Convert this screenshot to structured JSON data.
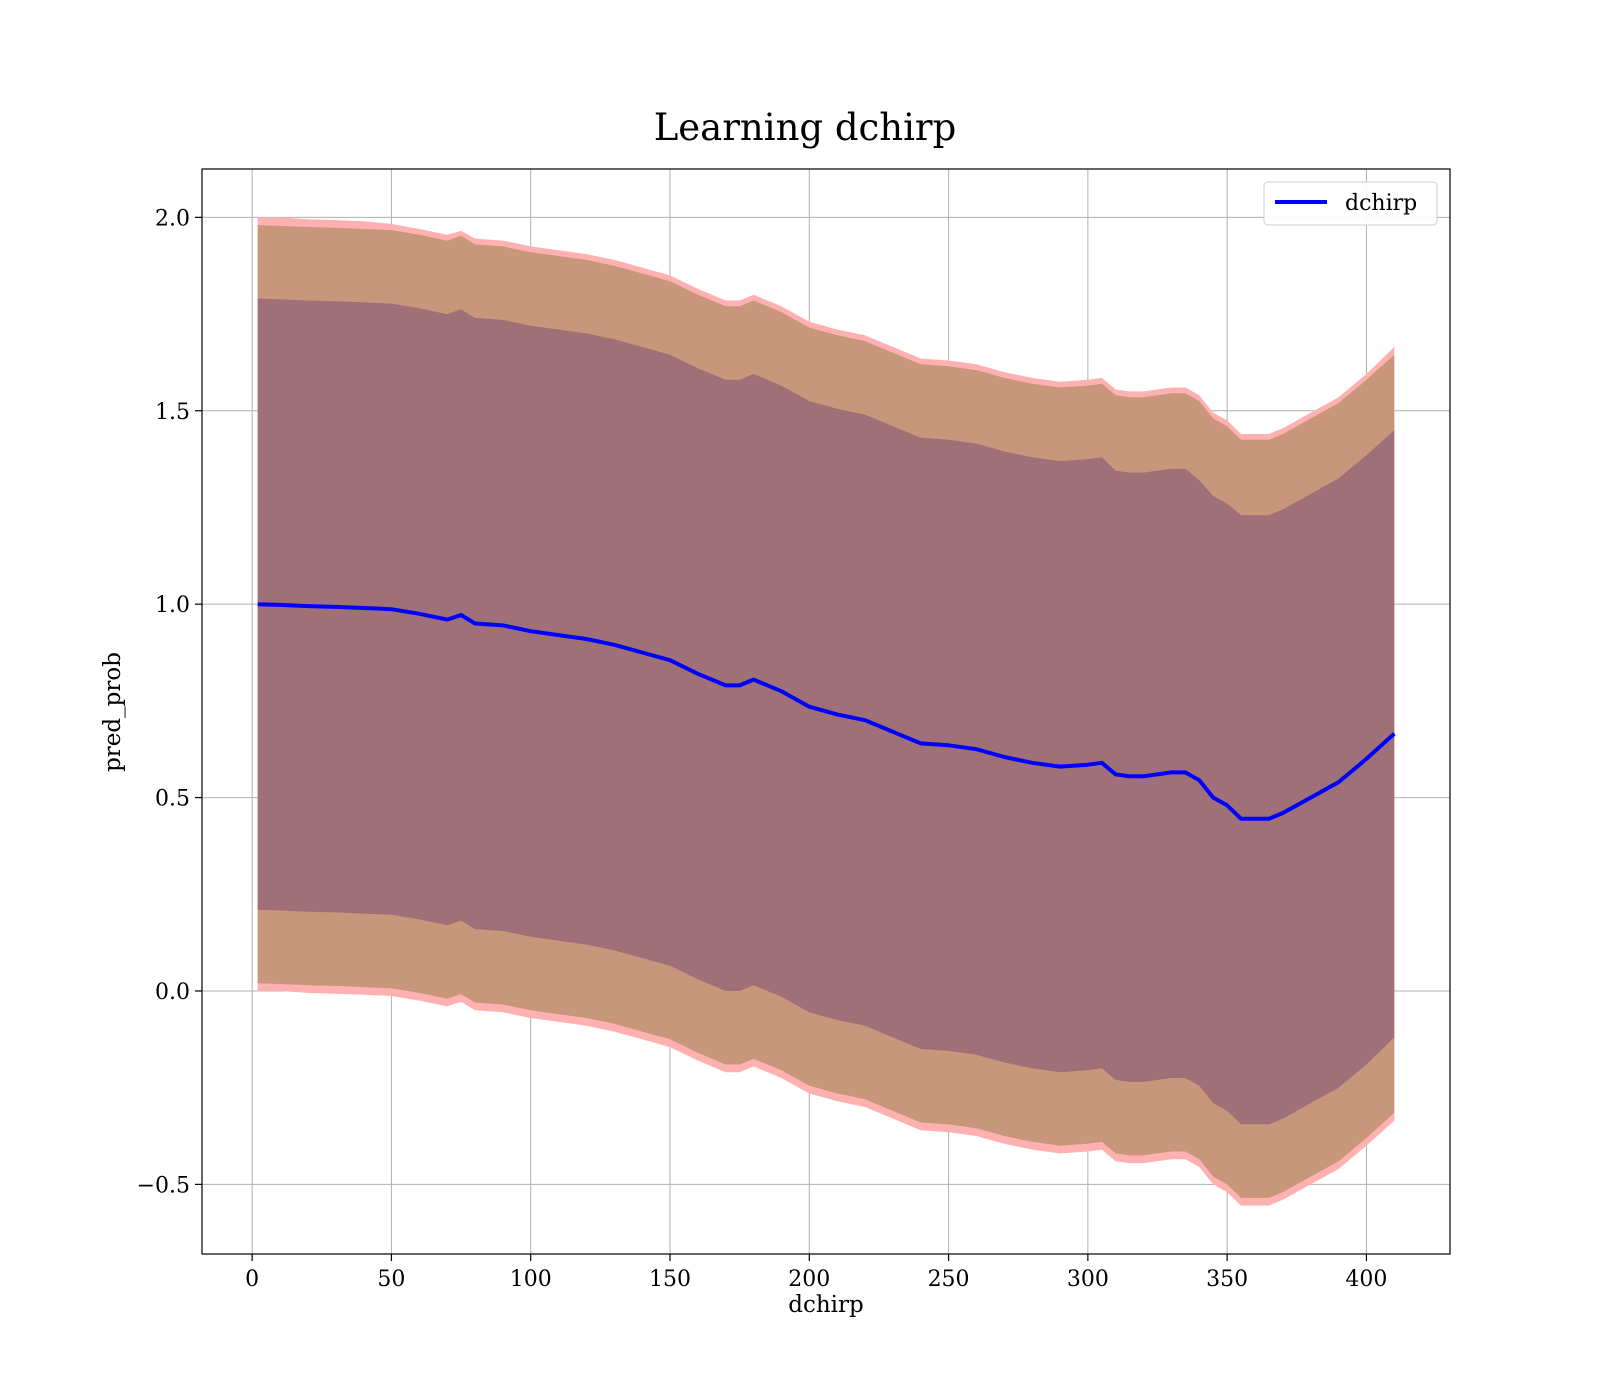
{
  "chart_data": {
    "type": "line",
    "title": "Learning dchirp",
    "xlabel": "dchirp",
    "ylabel": "pred_prob",
    "xlim": [
      -18,
      430
    ],
    "ylim": [
      -0.68,
      2.125
    ],
    "xticks": [
      0,
      50,
      100,
      150,
      200,
      250,
      300,
      350,
      400
    ],
    "yticks": [
      -0.5,
      0.0,
      0.5,
      1.0,
      1.5,
      2.0
    ],
    "xtick_labels": [
      "0",
      "50",
      "100",
      "150",
      "200",
      "250",
      "300",
      "350",
      "400"
    ],
    "ytick_labels": [
      "−0.5",
      "0.0",
      "0.5",
      "1.0",
      "1.5",
      "2.0"
    ],
    "grid": true,
    "legend_position": "top-right",
    "colors": {
      "line": "#0000ff",
      "band_outer": "#ffb0b0",
      "band_middle": "#c8967a",
      "band_inner": "#a07078",
      "grid": "#b0b0b0"
    },
    "series": [
      {
        "name": "dchirp",
        "x": [
          2,
          10,
          20,
          30,
          40,
          50,
          60,
          70,
          75,
          80,
          90,
          100,
          110,
          120,
          130,
          140,
          150,
          160,
          170,
          175,
          180,
          190,
          200,
          210,
          220,
          230,
          240,
          250,
          260,
          270,
          280,
          290,
          300,
          305,
          310,
          315,
          320,
          330,
          335,
          340,
          345,
          350,
          355,
          360,
          365,
          370,
          380,
          390,
          400,
          410
        ],
        "y": [
          1.0,
          0.998,
          0.995,
          0.993,
          0.99,
          0.987,
          0.975,
          0.96,
          0.972,
          0.95,
          0.945,
          0.93,
          0.92,
          0.91,
          0.895,
          0.875,
          0.855,
          0.82,
          0.79,
          0.79,
          0.805,
          0.775,
          0.735,
          0.715,
          0.7,
          0.67,
          0.64,
          0.635,
          0.625,
          0.605,
          0.59,
          0.58,
          0.585,
          0.59,
          0.56,
          0.555,
          0.555,
          0.565,
          0.565,
          0.545,
          0.5,
          0.48,
          0.445,
          0.445,
          0.445,
          0.46,
          0.5,
          0.54,
          0.6,
          0.665
        ]
      }
    ],
    "bands": [
      {
        "role": "outer",
        "x": [
          2,
          10,
          20,
          30,
          40,
          50,
          60,
          70,
          75,
          80,
          90,
          100,
          110,
          120,
          130,
          140,
          150,
          160,
          170,
          175,
          180,
          190,
          200,
          210,
          220,
          230,
          240,
          250,
          260,
          270,
          280,
          290,
          300,
          305,
          310,
          315,
          320,
          330,
          335,
          340,
          345,
          350,
          355,
          360,
          365,
          370,
          380,
          390,
          400,
          410
        ],
        "upper": [
          2.0,
          2.0,
          1.995,
          1.993,
          1.99,
          1.983,
          1.97,
          1.955,
          1.965,
          1.945,
          1.94,
          1.925,
          1.915,
          1.905,
          1.89,
          1.87,
          1.85,
          1.815,
          1.785,
          1.785,
          1.8,
          1.77,
          1.73,
          1.71,
          1.695,
          1.665,
          1.635,
          1.63,
          1.62,
          1.6,
          1.585,
          1.575,
          1.58,
          1.585,
          1.555,
          1.55,
          1.55,
          1.56,
          1.56,
          1.54,
          1.495,
          1.475,
          1.44,
          1.44,
          1.44,
          1.455,
          1.495,
          1.535,
          1.595,
          1.665
        ],
        "lower": [
          0.0,
          0.0,
          -0.005,
          -0.007,
          -0.01,
          -0.013,
          -0.025,
          -0.04,
          -0.028,
          -0.05,
          -0.055,
          -0.07,
          -0.08,
          -0.09,
          -0.105,
          -0.125,
          -0.145,
          -0.18,
          -0.21,
          -0.21,
          -0.195,
          -0.225,
          -0.265,
          -0.285,
          -0.3,
          -0.33,
          -0.36,
          -0.365,
          -0.375,
          -0.395,
          -0.41,
          -0.42,
          -0.415,
          -0.41,
          -0.44,
          -0.445,
          -0.445,
          -0.435,
          -0.435,
          -0.455,
          -0.5,
          -0.52,
          -0.555,
          -0.555,
          -0.555,
          -0.54,
          -0.5,
          -0.46,
          -0.4,
          -0.335
        ]
      },
      {
        "role": "middle",
        "x": [
          2,
          10,
          20,
          30,
          40,
          50,
          60,
          70,
          75,
          80,
          90,
          100,
          110,
          120,
          130,
          140,
          150,
          160,
          170,
          175,
          180,
          190,
          200,
          210,
          220,
          230,
          240,
          250,
          260,
          270,
          280,
          290,
          300,
          305,
          310,
          315,
          320,
          330,
          335,
          340,
          345,
          350,
          355,
          360,
          365,
          370,
          380,
          390,
          400,
          410
        ],
        "upper": [
          1.98,
          1.978,
          1.975,
          1.973,
          1.97,
          1.967,
          1.955,
          1.94,
          1.952,
          1.93,
          1.925,
          1.91,
          1.9,
          1.89,
          1.875,
          1.855,
          1.835,
          1.8,
          1.77,
          1.77,
          1.785,
          1.755,
          1.715,
          1.695,
          1.68,
          1.65,
          1.62,
          1.615,
          1.605,
          1.585,
          1.57,
          1.56,
          1.565,
          1.57,
          1.54,
          1.535,
          1.535,
          1.545,
          1.545,
          1.525,
          1.48,
          1.46,
          1.425,
          1.425,
          1.425,
          1.44,
          1.48,
          1.52,
          1.58,
          1.645
        ],
        "lower": [
          0.02,
          0.018,
          0.015,
          0.013,
          0.01,
          0.007,
          -0.005,
          -0.02,
          -0.008,
          -0.03,
          -0.035,
          -0.05,
          -0.06,
          -0.07,
          -0.085,
          -0.105,
          -0.125,
          -0.16,
          -0.19,
          -0.19,
          -0.175,
          -0.205,
          -0.245,
          -0.265,
          -0.28,
          -0.31,
          -0.34,
          -0.345,
          -0.355,
          -0.375,
          -0.39,
          -0.4,
          -0.395,
          -0.39,
          -0.42,
          -0.425,
          -0.425,
          -0.415,
          -0.415,
          -0.435,
          -0.48,
          -0.5,
          -0.535,
          -0.535,
          -0.535,
          -0.52,
          -0.48,
          -0.44,
          -0.38,
          -0.315
        ]
      },
      {
        "role": "inner",
        "x": [
          2,
          10,
          20,
          30,
          40,
          50,
          60,
          70,
          75,
          80,
          90,
          100,
          110,
          120,
          130,
          140,
          150,
          160,
          170,
          175,
          180,
          190,
          200,
          210,
          220,
          230,
          240,
          250,
          260,
          270,
          280,
          290,
          300,
          305,
          310,
          315,
          320,
          330,
          335,
          340,
          345,
          350,
          355,
          360,
          365,
          370,
          380,
          390,
          400,
          410
        ],
        "upper": [
          1.79,
          1.788,
          1.785,
          1.783,
          1.78,
          1.777,
          1.765,
          1.75,
          1.762,
          1.74,
          1.735,
          1.72,
          1.71,
          1.7,
          1.685,
          1.665,
          1.645,
          1.61,
          1.58,
          1.58,
          1.595,
          1.565,
          1.525,
          1.505,
          1.49,
          1.46,
          1.43,
          1.425,
          1.415,
          1.395,
          1.38,
          1.37,
          1.375,
          1.38,
          1.345,
          1.34,
          1.34,
          1.35,
          1.35,
          1.32,
          1.28,
          1.26,
          1.23,
          1.23,
          1.23,
          1.245,
          1.285,
          1.325,
          1.385,
          1.45
        ],
        "lower": [
          0.21,
          0.208,
          0.205,
          0.203,
          0.2,
          0.197,
          0.185,
          0.17,
          0.182,
          0.16,
          0.155,
          0.14,
          0.13,
          0.12,
          0.105,
          0.085,
          0.065,
          0.03,
          0.0,
          0.0,
          0.015,
          -0.015,
          -0.055,
          -0.075,
          -0.09,
          -0.12,
          -0.15,
          -0.155,
          -0.165,
          -0.185,
          -0.2,
          -0.21,
          -0.205,
          -0.2,
          -0.23,
          -0.235,
          -0.235,
          -0.225,
          -0.225,
          -0.245,
          -0.29,
          -0.31,
          -0.345,
          -0.345,
          -0.345,
          -0.33,
          -0.29,
          -0.25,
          -0.19,
          -0.12
        ]
      }
    ]
  }
}
